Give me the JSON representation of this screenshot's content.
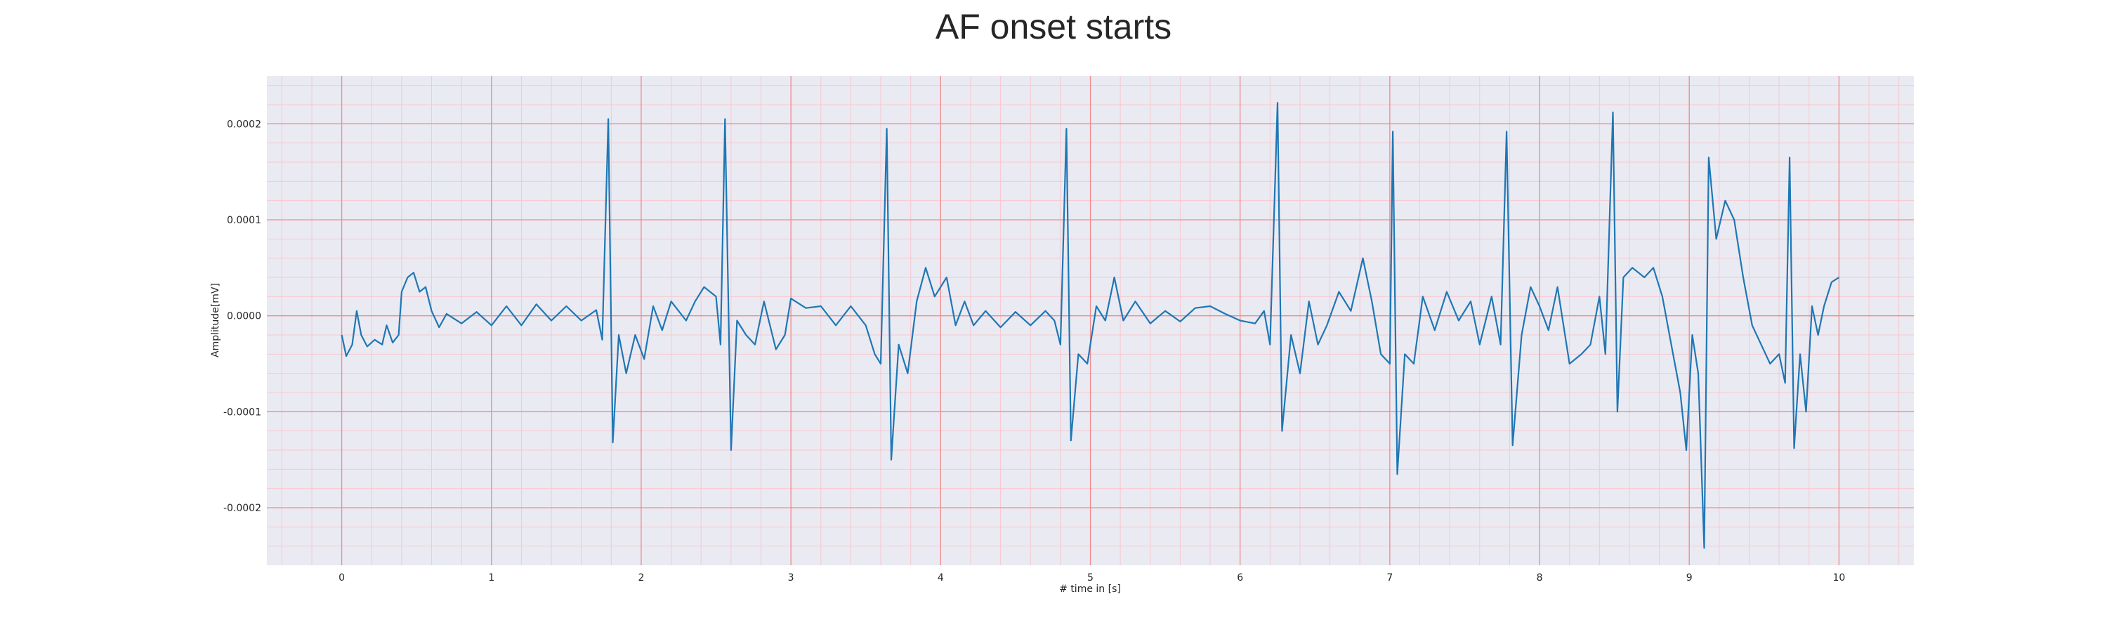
{
  "chart_data": {
    "type": "line",
    "title": "AF onset starts",
    "xlabel": "# time in [s]",
    "ylabel": "Amplitude[mV]",
    "xlim": [
      -0.5,
      10.5
    ],
    "ylim": [
      -0.00026,
      0.00025
    ],
    "x_ticks": [
      "0",
      "1",
      "2",
      "3",
      "4",
      "5",
      "6",
      "7",
      "8",
      "9",
      "10"
    ],
    "y_ticks": [
      "0.0002",
      "0.0001",
      "0.0000",
      "-0.0001",
      "-0.0002"
    ],
    "grid": "major red, minor light red",
    "colors": {
      "line": "#1f77b4",
      "plot_background": "#eaeaf2",
      "major_grid": "#f08a8a",
      "minor_grid": "#f7c8cf"
    },
    "series": [
      {
        "values": [
          [
            0.0,
            -2e-05
          ],
          [
            0.03,
            -4.2e-05
          ],
          [
            0.07,
            -3e-05
          ],
          [
            0.1,
            5e-06
          ],
          [
            0.13,
            -2e-05
          ],
          [
            0.17,
            -3.2e-05
          ],
          [
            0.22,
            -2.5e-05
          ],
          [
            0.27,
            -3e-05
          ],
          [
            0.3,
            -1e-05
          ],
          [
            0.34,
            -2.8e-05
          ],
          [
            0.38,
            -2e-05
          ],
          [
            0.4,
            2.5e-05
          ],
          [
            0.44,
            4e-05
          ],
          [
            0.48,
            4.5e-05
          ],
          [
            0.52,
            2.5e-05
          ],
          [
            0.56,
            3e-05
          ],
          [
            0.6,
            5e-06
          ],
          [
            0.65,
            -1.2e-05
          ],
          [
            0.7,
            2e-06
          ],
          [
            0.8,
            -8e-06
          ],
          [
            0.9,
            4e-06
          ],
          [
            1.0,
            -1e-05
          ],
          [
            1.1,
            1e-05
          ],
          [
            1.2,
            -1e-05
          ],
          [
            1.3,
            1.2e-05
          ],
          [
            1.4,
            -5e-06
          ],
          [
            1.5,
            1e-05
          ],
          [
            1.6,
            -5e-06
          ],
          [
            1.7,
            6e-06
          ],
          [
            1.74,
            -2.5e-05
          ],
          [
            1.78,
            0.000205
          ],
          [
            1.81,
            -0.000132
          ],
          [
            1.85,
            -2e-05
          ],
          [
            1.9,
            -6e-05
          ],
          [
            1.96,
            -2e-05
          ],
          [
            2.02,
            -4.5e-05
          ],
          [
            2.08,
            1e-05
          ],
          [
            2.14,
            -1.5e-05
          ],
          [
            2.2,
            1.5e-05
          ],
          [
            2.3,
            -5e-06
          ],
          [
            2.36,
            1.5e-05
          ],
          [
            2.42,
            3e-05
          ],
          [
            2.5,
            2e-05
          ],
          [
            2.53,
            -3e-05
          ],
          [
            2.56,
            0.000205
          ],
          [
            2.6,
            -0.00014
          ],
          [
            2.64,
            -5e-06
          ],
          [
            2.7,
            -2e-05
          ],
          [
            2.76,
            -3e-05
          ],
          [
            2.82,
            1.5e-05
          ],
          [
            2.9,
            -3.5e-05
          ],
          [
            2.96,
            -2e-05
          ],
          [
            3.0,
            1.8e-05
          ],
          [
            3.1,
            8e-06
          ],
          [
            3.2,
            1e-05
          ],
          [
            3.3,
            -1e-05
          ],
          [
            3.4,
            1e-05
          ],
          [
            3.5,
            -1e-05
          ],
          [
            3.56,
            -4e-05
          ],
          [
            3.6,
            -5e-05
          ],
          [
            3.64,
            0.000195
          ],
          [
            3.67,
            -0.00015
          ],
          [
            3.72,
            -3e-05
          ],
          [
            3.78,
            -6e-05
          ],
          [
            3.84,
            1.5e-05
          ],
          [
            3.9,
            5e-05
          ],
          [
            3.96,
            2e-05
          ],
          [
            4.04,
            4e-05
          ],
          [
            4.1,
            -1e-05
          ],
          [
            4.16,
            1.5e-05
          ],
          [
            4.22,
            -1e-05
          ],
          [
            4.3,
            5e-06
          ],
          [
            4.4,
            -1.2e-05
          ],
          [
            4.5,
            4e-06
          ],
          [
            4.6,
            -1e-05
          ],
          [
            4.7,
            5e-06
          ],
          [
            4.76,
            -5e-06
          ],
          [
            4.8,
            -3e-05
          ],
          [
            4.84,
            0.000195
          ],
          [
            4.87,
            -0.00013
          ],
          [
            4.92,
            -4e-05
          ],
          [
            4.98,
            -5e-05
          ],
          [
            5.04,
            1e-05
          ],
          [
            5.1,
            -5e-06
          ],
          [
            5.16,
            4e-05
          ],
          [
            5.22,
            -5e-06
          ],
          [
            5.3,
            1.5e-05
          ],
          [
            5.4,
            -8e-06
          ],
          [
            5.5,
            5e-06
          ],
          [
            5.6,
            -6e-06
          ],
          [
            5.7,
            8e-06
          ],
          [
            5.8,
            1e-05
          ],
          [
            5.9,
            2e-06
          ],
          [
            6.0,
            -5e-06
          ],
          [
            6.1,
            -8e-06
          ],
          [
            6.16,
            5e-06
          ],
          [
            6.2,
            -3e-05
          ],
          [
            6.25,
            0.000222
          ],
          [
            6.28,
            -0.00012
          ],
          [
            6.34,
            -2e-05
          ],
          [
            6.4,
            -6e-05
          ],
          [
            6.46,
            1.5e-05
          ],
          [
            6.52,
            -3e-05
          ],
          [
            6.58,
            -1e-05
          ],
          [
            6.66,
            2.5e-05
          ],
          [
            6.74,
            5e-06
          ],
          [
            6.82,
            6e-05
          ],
          [
            6.88,
            1.5e-05
          ],
          [
            6.94,
            -4e-05
          ],
          [
            7.0,
            -5e-05
          ],
          [
            7.02,
            0.000192
          ],
          [
            7.05,
            -0.000165
          ],
          [
            7.1,
            -4e-05
          ],
          [
            7.16,
            -5e-05
          ],
          [
            7.22,
            2e-05
          ],
          [
            7.3,
            -1.5e-05
          ],
          [
            7.38,
            2.5e-05
          ],
          [
            7.46,
            -5e-06
          ],
          [
            7.54,
            1.5e-05
          ],
          [
            7.6,
            -3e-05
          ],
          [
            7.68,
            2e-05
          ],
          [
            7.74,
            -3e-05
          ],
          [
            7.78,
            0.000192
          ],
          [
            7.82,
            -0.000135
          ],
          [
            7.88,
            -2e-05
          ],
          [
            7.94,
            3e-05
          ],
          [
            8.0,
            1e-05
          ],
          [
            8.06,
            -1.5e-05
          ],
          [
            8.12,
            3e-05
          ],
          [
            8.2,
            -5e-05
          ],
          [
            8.28,
            -4e-05
          ],
          [
            8.34,
            -3e-05
          ],
          [
            8.4,
            2e-05
          ],
          [
            8.44,
            -4e-05
          ],
          [
            8.49,
            0.000212
          ],
          [
            8.52,
            -0.0001
          ],
          [
            8.56,
            4e-05
          ],
          [
            8.62,
            5e-05
          ],
          [
            8.7,
            4e-05
          ],
          [
            8.76,
            5e-05
          ],
          [
            8.82,
            2e-05
          ],
          [
            8.88,
            -3e-05
          ],
          [
            8.94,
            -8e-05
          ],
          [
            8.98,
            -0.00014
          ],
          [
            9.02,
            -2e-05
          ],
          [
            9.06,
            -6e-05
          ],
          [
            9.1,
            -0.000242
          ],
          [
            9.13,
            0.000165
          ],
          [
            9.18,
            8e-05
          ],
          [
            9.24,
            0.00012
          ],
          [
            9.3,
            0.0001
          ],
          [
            9.36,
            4e-05
          ],
          [
            9.42,
            -1e-05
          ],
          [
            9.48,
            -3e-05
          ],
          [
            9.54,
            -5e-05
          ],
          [
            9.6,
            -4e-05
          ],
          [
            9.64,
            -7e-05
          ],
          [
            9.67,
            0.000165
          ],
          [
            9.7,
            -0.000138
          ],
          [
            9.74,
            -4e-05
          ],
          [
            9.78,
            -0.0001
          ],
          [
            9.82,
            1e-05
          ],
          [
            9.86,
            -2e-05
          ],
          [
            9.9,
            1e-05
          ],
          [
            9.95,
            3.5e-05
          ],
          [
            10.0,
            4e-05
          ]
        ]
      }
    ]
  }
}
